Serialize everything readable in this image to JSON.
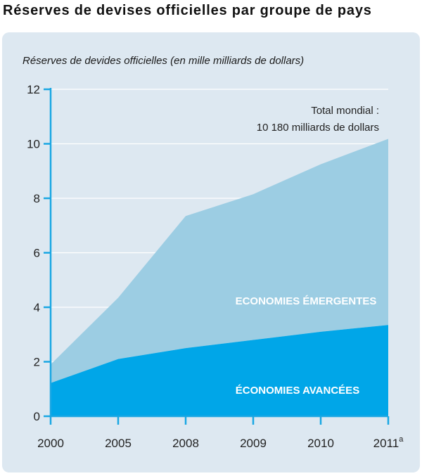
{
  "header": {
    "title": "Réserves de devises officielles par groupe de pays"
  },
  "chart_data": {
    "type": "area",
    "stacked": true,
    "subtitle": "Réserves de devides officielles (en mille milliards de dollars)",
    "categories": [
      "2000",
      "2005",
      "2008",
      "2009",
      "2010",
      "2011"
    ],
    "category_superscript": {
      "index": 5,
      "text": "a"
    },
    "ylim": [
      0,
      12
    ],
    "yticks": [
      "0",
      "2",
      "4",
      "6",
      "8",
      "10",
      "12"
    ],
    "grid": true,
    "series": [
      {
        "name": "ÉCONOMIES AVANCÉES",
        "values": [
          1.22,
          2.1,
          2.5,
          2.8,
          3.1,
          3.35
        ],
        "color": "#00a6e8"
      },
      {
        "name": "ECONOMIES ÉMERGENTES",
        "values": [
          0.68,
          2.25,
          4.85,
          5.35,
          6.15,
          6.83
        ],
        "color": "#9ccde3"
      }
    ],
    "annotation": {
      "line1": "Total mondial :",
      "line2": "10 180 milliards de dollars"
    }
  },
  "colors": {
    "panel_bg": "#dde8f1",
    "axis": "#1aa7e3",
    "grid": "#ffffff"
  }
}
